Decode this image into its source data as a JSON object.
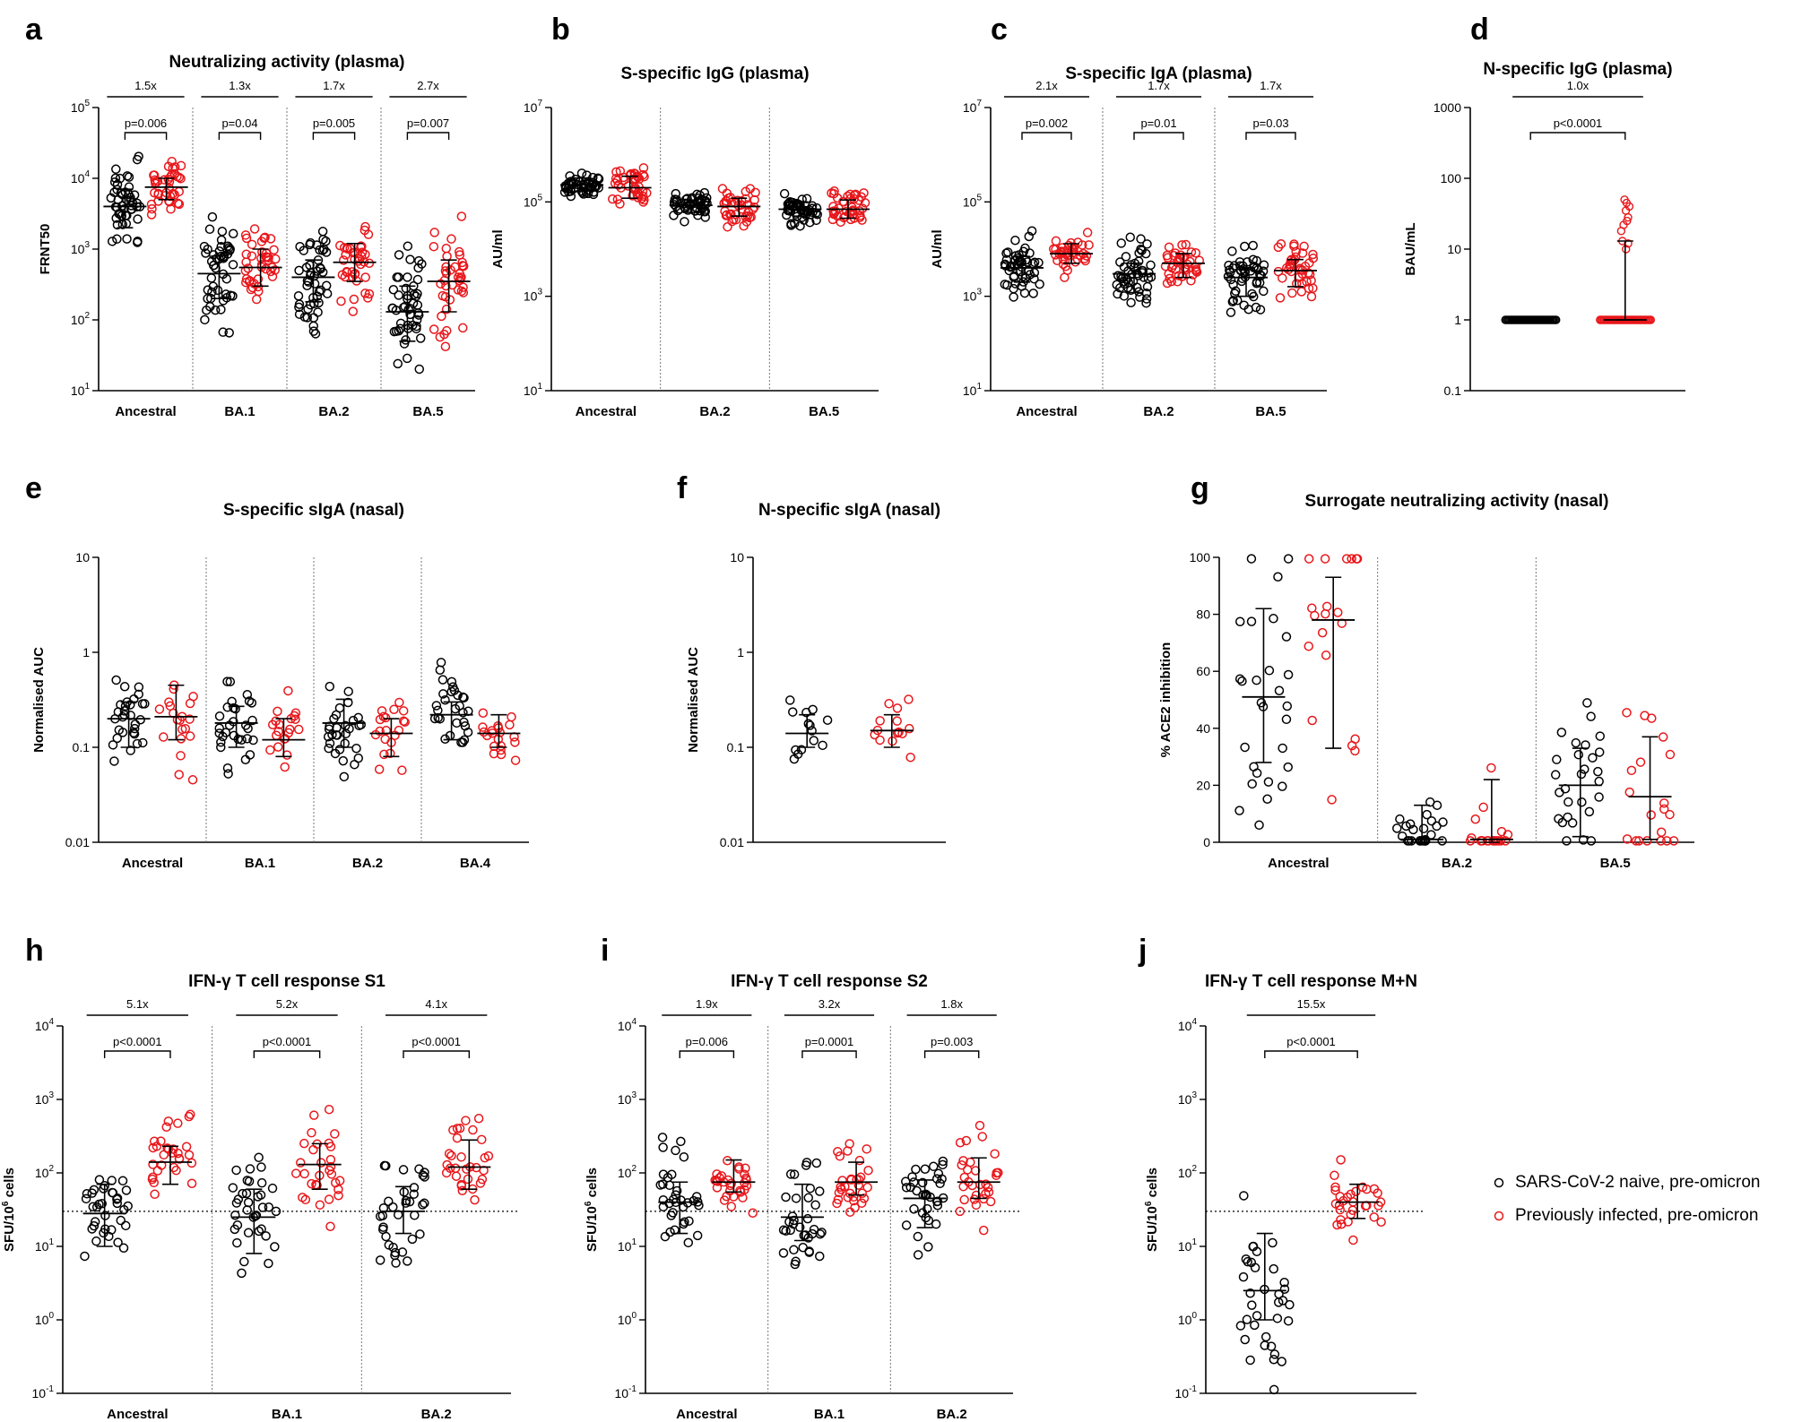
{
  "colors": {
    "naive": "#000000",
    "infected": "#e8171b",
    "axis": "#000000"
  },
  "legend": {
    "placement": "right",
    "items": [
      {
        "label": "SARS-CoV-2 naive, pre-omicron",
        "color": "#000000"
      },
      {
        "label": "Previously infected, pre-omicron",
        "color": "#e8171b"
      }
    ]
  },
  "chart_data": [
    {
      "letter": "a",
      "type": "scatter",
      "title": "Neutralizing activity (plasma)",
      "ylabel": "FRNT50",
      "yscale": "log",
      "ylim": [
        10,
        100000
      ],
      "yticks": [
        {
          "v": 10,
          "m": "10",
          "e": "1"
        },
        {
          "v": 100,
          "m": "10",
          "e": "2"
        },
        {
          "v": 1000,
          "m": "10",
          "e": "3"
        },
        {
          "v": 10000,
          "m": "10",
          "e": "4"
        },
        {
          "v": 100000,
          "m": "10",
          "e": "5"
        }
      ],
      "categories": [
        "Ancestral",
        "BA.1",
        "BA.2",
        "BA.5"
      ],
      "groups": [
        {
          "naive": {
            "median": 4000,
            "q1": 2000,
            "q3": 7000
          },
          "infected": {
            "median": 7500,
            "q1": 5000,
            "q3": 10000
          },
          "fold": "1.5x",
          "p": "p=0.006"
        },
        {
          "naive": {
            "median": 450,
            "q1": 200,
            "q3": 800
          },
          "infected": {
            "median": 550,
            "q1": 300,
            "q3": 1000
          },
          "fold": "1.3x",
          "p": "p=0.04"
        },
        {
          "naive": {
            "median": 400,
            "q1": 180,
            "q3": 700
          },
          "infected": {
            "median": 650,
            "q1": 350,
            "q3": 1200
          },
          "fold": "1.7x",
          "p": "p=0.005"
        },
        {
          "naive": {
            "median": 130,
            "q1": 50,
            "q3": 300
          },
          "infected": {
            "median": 350,
            "q1": 130,
            "q3": 700
          },
          "fold": "2.7x",
          "p": "p=0.007"
        }
      ]
    },
    {
      "letter": "b",
      "type": "scatter",
      "title": "S-specific IgG (plasma)",
      "ylabel": "AU/ml",
      "yscale": "log",
      "ylim": [
        10,
        10000000
      ],
      "yticks": [
        {
          "v": 10,
          "m": "10",
          "e": "1"
        },
        {
          "v": 1000,
          "m": "10",
          "e": "3"
        },
        {
          "v": 100000,
          "m": "10",
          "e": "5"
        },
        {
          "v": 10000000,
          "m": "10",
          "e": "7"
        }
      ],
      "categories": [
        "Ancestral",
        "BA.2",
        "BA.5"
      ],
      "groups": [
        {
          "naive": {
            "median": 230000,
            "q1": 170000,
            "q3": 320000
          },
          "infected": {
            "median": 200000,
            "q1": 120000,
            "q3": 350000
          },
          "fold": "",
          "p": ""
        },
        {
          "naive": {
            "median": 85000,
            "q1": 60000,
            "q3": 110000
          },
          "infected": {
            "median": 80000,
            "q1": 50000,
            "q3": 120000
          },
          "fold": "",
          "p": ""
        },
        {
          "naive": {
            "median": 70000,
            "q1": 50000,
            "q3": 100000
          },
          "infected": {
            "median": 70000,
            "q1": 45000,
            "q3": 110000
          },
          "fold": "",
          "p": ""
        }
      ]
    },
    {
      "letter": "c",
      "type": "scatter",
      "title": "S-specific IgA (plasma)",
      "ylabel": "AU/ml",
      "yscale": "log",
      "ylim": [
        10,
        10000000
      ],
      "yticks": [
        {
          "v": 10,
          "m": "10",
          "e": "1"
        },
        {
          "v": 1000,
          "m": "10",
          "e": "3"
        },
        {
          "v": 100000,
          "m": "10",
          "e": "5"
        },
        {
          "v": 10000000,
          "m": "10",
          "e": "7"
        }
      ],
      "categories": [
        "Ancestral",
        "BA.2",
        "BA.5"
      ],
      "groups": [
        {
          "naive": {
            "median": 4000,
            "q1": 2000,
            "q3": 7000
          },
          "infected": {
            "median": 8000,
            "q1": 5000,
            "q3": 13000
          },
          "fold": "2.1x",
          "p": "p=0.002"
        },
        {
          "naive": {
            "median": 3000,
            "q1": 1200,
            "q3": 5000
          },
          "infected": {
            "median": 5000,
            "q1": 2500,
            "q3": 8000
          },
          "fold": "1.7x",
          "p": "p=0.01"
        },
        {
          "naive": {
            "median": 2500,
            "q1": 1000,
            "q3": 4000
          },
          "infected": {
            "median": 3500,
            "q1": 1600,
            "q3": 6000
          },
          "fold": "1.7x",
          "p": "p=0.03"
        }
      ]
    },
    {
      "letter": "d",
      "type": "scatter",
      "title": "N-specific IgG (plasma)",
      "ylabel": "BAU/mL",
      "yscale": "log",
      "ylim": [
        0.1,
        1000
      ],
      "yticks": [
        {
          "v": 0.1,
          "m": "0.1",
          "e": ""
        },
        {
          "v": 1,
          "m": "1",
          "e": ""
        },
        {
          "v": 10,
          "m": "10",
          "e": ""
        },
        {
          "v": 100,
          "m": "100",
          "e": ""
        },
        {
          "v": 1000,
          "m": "1000",
          "e": ""
        }
      ],
      "categories": [
        ""
      ],
      "groups": [
        {
          "naive": {
            "median": 1,
            "q1": 1,
            "q3": 1
          },
          "infected": {
            "median": 1,
            "q1": 1,
            "q3": 13
          },
          "fold": "1.0x",
          "p": "p<0.0001"
        }
      ]
    },
    {
      "letter": "e",
      "type": "scatter",
      "title": "S-specific sIgA (nasal)",
      "ylabel": "Normalised AUC",
      "yscale": "log",
      "ylim": [
        0.01,
        10
      ],
      "yticks": [
        {
          "v": 0.01,
          "m": "0.01",
          "e": ""
        },
        {
          "v": 0.1,
          "m": "0.1",
          "e": ""
        },
        {
          "v": 1,
          "m": "1",
          "e": ""
        },
        {
          "v": 10,
          "m": "10",
          "e": ""
        }
      ],
      "categories": [
        "Ancestral",
        "BA.1",
        "BA.2",
        "BA.4"
      ],
      "groups": [
        {
          "naive": {
            "median": 0.2,
            "q1": 0.1,
            "q3": 0.3
          },
          "infected": {
            "median": 0.21,
            "q1": 0.12,
            "q3": 0.45
          },
          "fold": "",
          "p": ""
        },
        {
          "naive": {
            "median": 0.18,
            "q1": 0.1,
            "q3": 0.27
          },
          "infected": {
            "median": 0.12,
            "q1": 0.08,
            "q3": 0.2
          },
          "fold": "",
          "p": ""
        },
        {
          "naive": {
            "median": 0.18,
            "q1": 0.1,
            "q3": 0.32
          },
          "infected": {
            "median": 0.14,
            "q1": 0.08,
            "q3": 0.2
          },
          "fold": "",
          "p": ""
        },
        {
          "naive": {
            "median": 0.22,
            "q1": 0.12,
            "q3": 0.3
          },
          "infected": {
            "median": 0.14,
            "q1": 0.1,
            "q3": 0.22
          },
          "fold": "",
          "p": ""
        }
      ]
    },
    {
      "letter": "f",
      "type": "scatter",
      "title": "N-specific sIgA (nasal)",
      "ylabel": "Normalised AUC",
      "yscale": "log",
      "ylim": [
        0.01,
        10
      ],
      "yticks": [
        {
          "v": 0.01,
          "m": "0.01",
          "e": ""
        },
        {
          "v": 0.1,
          "m": "0.1",
          "e": ""
        },
        {
          "v": 1,
          "m": "1",
          "e": ""
        },
        {
          "v": 10,
          "m": "10",
          "e": ""
        }
      ],
      "categories": [
        ""
      ],
      "groups": [
        {
          "naive": {
            "median": 0.14,
            "q1": 0.1,
            "q3": 0.22
          },
          "infected": {
            "median": 0.15,
            "q1": 0.1,
            "q3": 0.22
          },
          "fold": "",
          "p": ""
        }
      ]
    },
    {
      "letter": "g",
      "type": "scatter",
      "title": "Surrogate neutralizing activity (nasal)",
      "ylabel": "% ACE2 inhibition",
      "yscale": "linear",
      "ylim": [
        0,
        100
      ],
      "yticks": [
        {
          "v": 0,
          "m": "0",
          "e": ""
        },
        {
          "v": 20,
          "m": "20",
          "e": ""
        },
        {
          "v": 40,
          "m": "40",
          "e": ""
        },
        {
          "v": 60,
          "m": "60",
          "e": ""
        },
        {
          "v": 80,
          "m": "80",
          "e": ""
        },
        {
          "v": 100,
          "m": "100",
          "e": ""
        }
      ],
      "categories": [
        "Ancestral",
        "BA.2",
        "BA.5"
      ],
      "groups": [
        {
          "naive": {
            "median": 51,
            "q1": 28,
            "q3": 82
          },
          "infected": {
            "median": 78,
            "q1": 33,
            "q3": 93
          },
          "fold": "",
          "p": ""
        },
        {
          "naive": {
            "median": 1,
            "q1": 0,
            "q3": 13
          },
          "infected": {
            "median": 1,
            "q1": 0,
            "q3": 22
          },
          "fold": "",
          "p": ""
        },
        {
          "naive": {
            "median": 20,
            "q1": 2,
            "q3": 33
          },
          "infected": {
            "median": 16,
            "q1": 1,
            "q3": 37
          },
          "fold": "",
          "p": ""
        }
      ]
    },
    {
      "letter": "h",
      "type": "scatter",
      "title": "IFN-γ T cell response S1",
      "ylabel": "SFU/10^6 cells",
      "yscale": "log",
      "ylim": [
        0.1,
        10000
      ],
      "threshold": 30,
      "yticks": [
        {
          "v": 0.1,
          "m": "10",
          "e": "-1"
        },
        {
          "v": 1,
          "m": "10",
          "e": "0"
        },
        {
          "v": 10,
          "m": "10",
          "e": "1"
        },
        {
          "v": 100,
          "m": "10",
          "e": "2"
        },
        {
          "v": 1000,
          "m": "10",
          "e": "3"
        },
        {
          "v": 10000,
          "m": "10",
          "e": "4"
        }
      ],
      "categories": [
        "Ancestral",
        "BA.1",
        "BA.2"
      ],
      "groups": [
        {
          "naive": {
            "median": 28,
            "q1": 10,
            "q3": 70
          },
          "infected": {
            "median": 140,
            "q1": 70,
            "q3": 230
          },
          "fold": "5.1x",
          "p": "p<0.0001"
        },
        {
          "naive": {
            "median": 25,
            "q1": 8,
            "q3": 60
          },
          "infected": {
            "median": 130,
            "q1": 60,
            "q3": 250
          },
          "fold": "5.2x",
          "p": "p<0.0001"
        },
        {
          "naive": {
            "median": 30,
            "q1": 15,
            "q3": 65
          },
          "infected": {
            "median": 120,
            "q1": 60,
            "q3": 280
          },
          "fold": "4.1x",
          "p": "p<0.0001"
        }
      ]
    },
    {
      "letter": "i",
      "type": "scatter",
      "title": "IFN-γ T cell response S2",
      "ylabel": "SFU/10^6 cells",
      "yscale": "log",
      "ylim": [
        0.1,
        10000
      ],
      "threshold": 30,
      "yticks": [
        {
          "v": 0.1,
          "m": "10",
          "e": "-1"
        },
        {
          "v": 1,
          "m": "10",
          "e": "0"
        },
        {
          "v": 10,
          "m": "10",
          "e": "1"
        },
        {
          "v": 100,
          "m": "10",
          "e": "2"
        },
        {
          "v": 1000,
          "m": "10",
          "e": "3"
        },
        {
          "v": 10000,
          "m": "10",
          "e": "4"
        }
      ],
      "categories": [
        "Ancestral",
        "BA.1",
        "BA.2"
      ],
      "groups": [
        {
          "naive": {
            "median": 40,
            "q1": 15,
            "q3": 75
          },
          "infected": {
            "median": 75,
            "q1": 55,
            "q3": 150
          },
          "fold": "1.9x",
          "p": "p=0.006"
        },
        {
          "naive": {
            "median": 25,
            "q1": 12,
            "q3": 70
          },
          "infected": {
            "median": 75,
            "q1": 50,
            "q3": 140
          },
          "fold": "3.2x",
          "p": "p=0.0001"
        },
        {
          "naive": {
            "median": 45,
            "q1": 18,
            "q3": 80
          },
          "infected": {
            "median": 75,
            "q1": 45,
            "q3": 160
          },
          "fold": "1.8x",
          "p": "p=0.003"
        }
      ]
    },
    {
      "letter": "j",
      "type": "scatter",
      "title": "IFN-γ T cell response M+N",
      "ylabel": "SFU/10^6 cells",
      "yscale": "log",
      "ylim": [
        0.1,
        10000
      ],
      "threshold": 30,
      "yticks": [
        {
          "v": 0.1,
          "m": "10",
          "e": "-1"
        },
        {
          "v": 1,
          "m": "10",
          "e": "0"
        },
        {
          "v": 10,
          "m": "10",
          "e": "1"
        },
        {
          "v": 100,
          "m": "10",
          "e": "2"
        },
        {
          "v": 1000,
          "m": "10",
          "e": "3"
        },
        {
          "v": 10000,
          "m": "10",
          "e": "4"
        }
      ],
      "categories": [
        ""
      ],
      "groups": [
        {
          "naive": {
            "median": 2.5,
            "q1": 1,
            "q3": 15
          },
          "infected": {
            "median": 40,
            "q1": 24,
            "q3": 70
          },
          "fold": "15.5x",
          "p": "p<0.0001"
        }
      ]
    }
  ]
}
